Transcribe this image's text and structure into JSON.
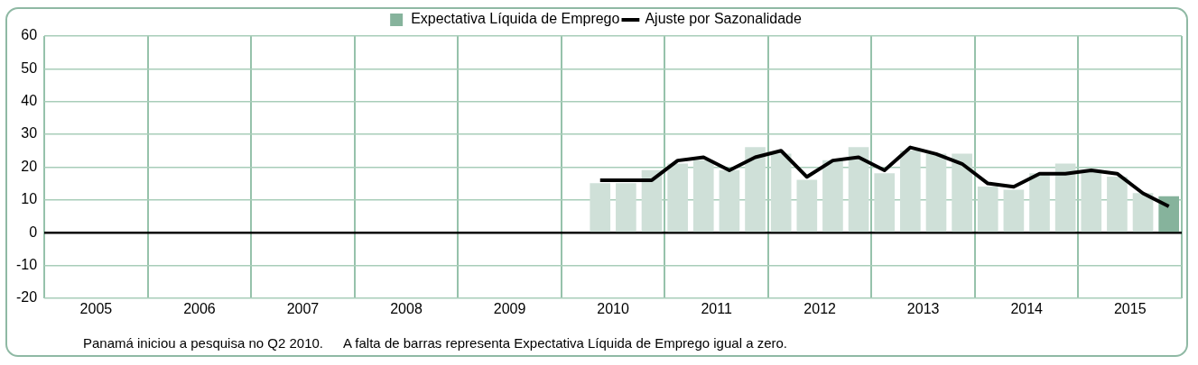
{
  "chart_data": {
    "type": "bar",
    "x": [
      2010.375,
      2010.625,
      2010.875,
      2011.125,
      2011.375,
      2011.625,
      2011.875,
      2012.125,
      2012.375,
      2012.625,
      2012.875,
      2013.125,
      2013.375,
      2013.625,
      2013.875,
      2014.125,
      2014.375,
      2014.625,
      2014.875,
      2015.125,
      2015.375,
      2015.625,
      2015.875
    ],
    "series": [
      {
        "name": "Expectativa Líquida de Emprego",
        "color": "#86b39c",
        "colors": [
          "#cfe0d8",
          "#cfe0d8",
          "#cfe0d8",
          "#cfe0d8",
          "#cfe0d8",
          "#cfe0d8",
          "#cfe0d8",
          "#cfe0d8",
          "#cfe0d8",
          "#cfe0d8",
          "#cfe0d8",
          "#cfe0d8",
          "#cfe0d8",
          "#cfe0d8",
          "#cfe0d8",
          "#cfe0d8",
          "#cfe0d8",
          "#cfe0d8",
          "#cfe0d8",
          "#cfe0d8",
          "#cfe0d8",
          "#cfe0d8",
          "#86b39c"
        ],
        "values": [
          15,
          15,
          19,
          21,
          22,
          19,
          26,
          24,
          16,
          22,
          26,
          18,
          25,
          24,
          24,
          14,
          13,
          18,
          21,
          19,
          17,
          12,
          11
        ]
      },
      {
        "name": "Ajuste por Sazonalidade",
        "type": "line",
        "color": "#000000",
        "values": [
          16,
          16,
          16,
          22,
          23,
          19,
          23,
          25,
          17,
          22,
          23,
          19,
          26,
          24,
          21,
          15,
          14,
          18,
          18,
          19,
          18,
          12,
          8
        ]
      }
    ],
    "xlim": [
      2005,
      2016
    ],
    "xticks": [
      {
        "value": 2005,
        "label": null
      },
      {
        "value": 2005.5,
        "label": "2005"
      },
      {
        "value": 2006,
        "label": null
      },
      {
        "value": 2006.5,
        "label": "2006"
      },
      {
        "value": 2007,
        "label": null
      },
      {
        "value": 2007.5,
        "label": "2007"
      },
      {
        "value": 2008,
        "label": null
      },
      {
        "value": 2008.5,
        "label": "2008"
      },
      {
        "value": 2009,
        "label": null
      },
      {
        "value": 2009.5,
        "label": "2009"
      },
      {
        "value": 2010,
        "label": null
      },
      {
        "value": 2010.5,
        "label": "2010"
      },
      {
        "value": 2011,
        "label": null
      },
      {
        "value": 2011.5,
        "label": "2011"
      },
      {
        "value": 2012,
        "label": null
      },
      {
        "value": 2012.5,
        "label": "2012"
      },
      {
        "value": 2013,
        "label": null
      },
      {
        "value": 2013.5,
        "label": "2013"
      },
      {
        "value": 2014,
        "label": null
      },
      {
        "value": 2014.5,
        "label": "2014"
      },
      {
        "value": 2015,
        "label": null
      },
      {
        "value": 2015.5,
        "label": "2015"
      },
      {
        "value": 2016,
        "label": null
      }
    ],
    "ylim": [
      -20,
      60
    ],
    "yticks": [
      -20,
      -10,
      0,
      10,
      20,
      30,
      40,
      50,
      60
    ],
    "grid": true,
    "legend": "top",
    "marker": "none",
    "line_style": "solid",
    "annotations": [
      "Panamá iniciou a pesquisa no Q2 2010.",
      "A falta de barras representa Expectativa Líquida de Emprego igual a zero."
    ]
  }
}
